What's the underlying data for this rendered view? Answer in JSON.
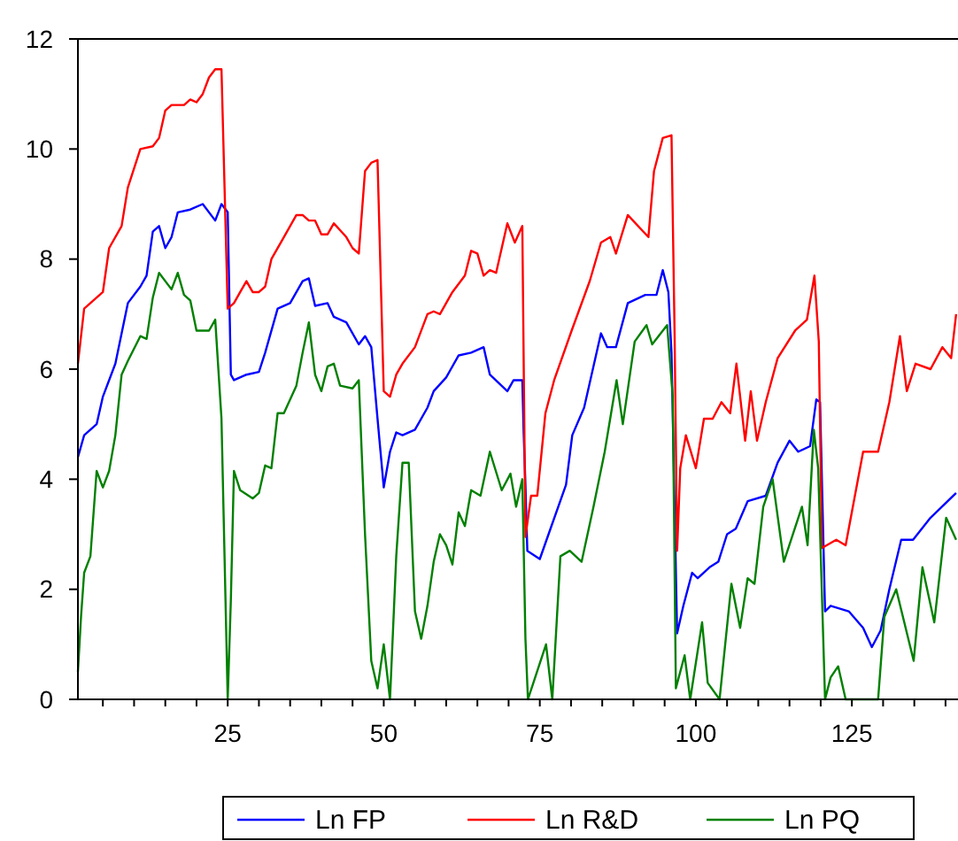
{
  "chart_data": {
    "type": "line",
    "xlim": [
      1,
      142
    ],
    "ylim": [
      0,
      12
    ],
    "xticks": [
      {
        "value": 5,
        "label": null
      },
      {
        "value": 10,
        "label": null
      },
      {
        "value": 15,
        "label": null
      },
      {
        "value": 20,
        "label": null
      },
      25,
      {
        "value": 30,
        "label": null
      },
      {
        "value": 35,
        "label": null
      },
      {
        "value": 40,
        "label": null
      },
      {
        "value": 45,
        "label": null
      },
      50,
      {
        "value": 55,
        "label": null
      },
      {
        "value": 60,
        "label": null
      },
      {
        "value": 65,
        "label": null
      },
      {
        "value": 70,
        "label": null
      },
      75,
      {
        "value": 80,
        "label": null
      },
      {
        "value": 85,
        "label": null
      },
      {
        "value": 90,
        "label": null
      },
      {
        "value": 95,
        "label": null
      },
      100,
      {
        "value": 105,
        "label": null
      },
      {
        "value": 110,
        "label": null
      },
      {
        "value": 115,
        "label": null
      },
      {
        "value": 120,
        "label": null
      },
      125,
      {
        "value": 130,
        "label": null
      },
      {
        "value": 135,
        "label": null
      },
      {
        "value": 140,
        "label": null
      }
    ],
    "yticks": [
      0,
      2,
      4,
      6,
      8,
      10,
      12
    ],
    "grid": false,
    "legend": "bottom",
    "marker": "none",
    "line_style": "solid",
    "series": [
      {
        "name": "Ln FP",
        "color": "#0000ff",
        "x": [
          1,
          2,
          4,
          5,
          7,
          9,
          11,
          12,
          13,
          14,
          15,
          16,
          17,
          19,
          21,
          23,
          24,
          25,
          25.5,
          26,
          28,
          30,
          31,
          33,
          35,
          37,
          38,
          39,
          41,
          42,
          44,
          46,
          47,
          48,
          49,
          50,
          51,
          52,
          53,
          55,
          57,
          58,
          60,
          62,
          64,
          66,
          67,
          69.8,
          70.8,
          72.2,
          72.4,
          72.7,
          73,
          75,
          76.4,
          79.2,
          80.2,
          82.1,
          84.8,
          85.8,
          87.2,
          89.1,
          91.9,
          93.7,
          94.7,
          95.6,
          96.1,
          97,
          98,
          99.4,
          100.3,
          102.2,
          103.6,
          105,
          106.4,
          108.3,
          111.2,
          113.1,
          115,
          116.4,
          118.3,
          119.3,
          119.9,
          120.7,
          121.6,
          124.5,
          126.8,
          128.2,
          129.6,
          131,
          132.9,
          134.8,
          137.6,
          141.7
        ],
        "values": [
          4.4,
          4.8,
          5,
          5.5,
          6.1,
          7.2,
          7.5,
          7.7,
          8.5,
          8.6,
          8.2,
          8.4,
          8.85,
          8.9,
          9,
          8.7,
          9,
          8.85,
          5.9,
          5.8,
          5.9,
          5.95,
          6.3,
          7.1,
          7.2,
          7.6,
          7.65,
          7.15,
          7.2,
          6.95,
          6.85,
          6.45,
          6.6,
          6.4,
          5.1,
          3.85,
          4.5,
          4.85,
          4.8,
          4.9,
          5.3,
          5.6,
          5.85,
          6.25,
          6.3,
          6.4,
          5.9,
          5.6,
          5.8,
          5.8,
          4.9,
          3.9,
          2.7,
          2.55,
          3,
          3.9,
          4.8,
          5.3,
          6.65,
          6.4,
          6.4,
          7.2,
          7.35,
          7.35,
          7.8,
          7.4,
          6.3,
          1.2,
          1.7,
          2.3,
          2.2,
          2.4,
          2.5,
          3,
          3.1,
          3.6,
          3.7,
          4.3,
          4.7,
          4.5,
          4.6,
          5.45,
          5.4,
          1.6,
          1.7,
          1.6,
          1.3,
          0.95,
          1.25,
          2,
          2.9,
          2.9,
          3.3,
          3.75
        ]
      },
      {
        "name": "Ln R&D",
        "color": "#ff0000",
        "x": [
          1,
          2,
          3,
          5,
          6,
          8,
          9,
          11,
          13,
          14,
          15,
          16,
          18,
          19,
          20,
          21,
          22,
          23,
          24,
          25,
          26,
          27,
          28,
          29,
          30,
          31,
          32,
          34,
          36,
          37,
          38,
          39,
          40,
          41,
          42,
          44,
          45,
          46,
          47,
          48,
          49,
          50,
          51,
          52,
          53,
          55,
          57,
          58,
          59,
          60,
          61,
          63,
          64,
          65,
          66,
          67,
          68,
          69.8,
          71,
          72.2,
          72.7,
          73.6,
          74.6,
          75.9,
          77.3,
          80.1,
          83,
          84.8,
          86.3,
          87.2,
          89.1,
          92.4,
          93.3,
          94.7,
          96.1,
          96.6,
          97,
          97.5,
          98.4,
          100,
          101.3,
          102.7,
          104.1,
          105.5,
          106.5,
          107.9,
          108.8,
          109.8,
          111.2,
          113.1,
          115.9,
          117.8,
          119,
          119.7,
          120.2,
          122.5,
          124,
          126.8,
          129.2,
          131,
          132.7,
          133.8,
          135.2,
          137.6,
          139.5,
          140.9,
          141.7
        ],
        "values": [
          6.1,
          7.1,
          7.2,
          7.4,
          8.2,
          8.6,
          9.3,
          10,
          10.05,
          10.2,
          10.7,
          10.8,
          10.8,
          10.9,
          10.85,
          11,
          11.3,
          11.45,
          11.45,
          7.1,
          7.2,
          7.4,
          7.6,
          7.4,
          7.4,
          7.5,
          8,
          8.4,
          8.8,
          8.8,
          8.7,
          8.7,
          8.45,
          8.45,
          8.65,
          8.4,
          8.2,
          8.1,
          9.6,
          9.75,
          9.8,
          5.6,
          5.5,
          5.9,
          6.1,
          6.4,
          7,
          7.05,
          7,
          7.2,
          7.4,
          7.7,
          8.15,
          8.1,
          7.7,
          7.8,
          7.75,
          8.65,
          8.3,
          8.6,
          2.95,
          3.7,
          3.7,
          5.2,
          5.8,
          6.7,
          7.6,
          8.3,
          8.4,
          8.1,
          8.8,
          8.4,
          9.6,
          10.2,
          10.25,
          6.6,
          2.7,
          4.2,
          4.8,
          4.2,
          5.1,
          5.1,
          5.4,
          5.2,
          6.1,
          4.7,
          5.6,
          4.7,
          5.4,
          6.2,
          6.7,
          6.9,
          7.7,
          6.5,
          2.75,
          2.9,
          2.8,
          4.5,
          4.5,
          5.4,
          6.6,
          5.6,
          6.1,
          6,
          6.4,
          6.2,
          7
        ]
      },
      {
        "name": "Ln PQ",
        "color": "#008000",
        "x": [
          1,
          1.5,
          2,
          3,
          4,
          5,
          6,
          7,
          8,
          9,
          11,
          12,
          13,
          14,
          16,
          17,
          18,
          19,
          20,
          22,
          23,
          24,
          25,
          25.5,
          26,
          27,
          29,
          30,
          31,
          32,
          33,
          34,
          36,
          37,
          38,
          39,
          40,
          41,
          42,
          43,
          45,
          46,
          47,
          48,
          49,
          50,
          51,
          52,
          53,
          54,
          55,
          56,
          57,
          58,
          59,
          60,
          61,
          62,
          63,
          64,
          65.5,
          67,
          68.9,
          70.3,
          71.2,
          72.2,
          72.7,
          73.1,
          76,
          77,
          78.3,
          79.8,
          81.7,
          83.6,
          85.4,
          87.3,
          88.3,
          90.2,
          92.1,
          93,
          95.4,
          96.3,
          96.8,
          98.2,
          99.1,
          101,
          101.9,
          103.8,
          105.7,
          107.1,
          108.3,
          109.4,
          110.8,
          112.3,
          114.1,
          117,
          117.9,
          118.9,
          119.6,
          120.7,
          121.6,
          122.8,
          124,
          129.2,
          130.2,
          132.1,
          134.9,
          136.3,
          138.2,
          140.1,
          141.7
        ],
        "values": [
          0.5,
          1.5,
          2.3,
          2.6,
          4.15,
          3.85,
          4.15,
          4.8,
          5.9,
          6.15,
          6.6,
          6.55,
          7.3,
          7.75,
          7.45,
          7.75,
          7.35,
          7.25,
          6.7,
          6.7,
          6.9,
          5.1,
          0,
          1.8,
          4.15,
          3.8,
          3.65,
          3.75,
          4.25,
          4.2,
          5.2,
          5.2,
          5.7,
          6.3,
          6.85,
          5.9,
          5.6,
          6.05,
          6.1,
          5.7,
          5.65,
          5.8,
          3,
          0.7,
          0.2,
          1,
          0,
          2.6,
          4.3,
          4.3,
          1.6,
          1.1,
          1.7,
          2.5,
          3,
          2.8,
          2.45,
          3.4,
          3.15,
          3.8,
          3.7,
          4.5,
          3.8,
          4.1,
          3.5,
          4,
          1.1,
          0,
          1,
          0,
          2.6,
          2.7,
          2.5,
          3.5,
          4.5,
          5.8,
          5,
          6.5,
          6.8,
          6.45,
          6.8,
          5.5,
          0.2,
          0.8,
          0,
          1.4,
          0.3,
          0,
          2.1,
          1.3,
          2.2,
          2.1,
          3.5,
          4,
          2.5,
          3.5,
          2.8,
          4.9,
          4.2,
          0,
          0.4,
          0.6,
          0,
          0,
          1.5,
          2,
          0.7,
          2.4,
          1.4,
          3.3,
          2.9
        ]
      }
    ]
  }
}
